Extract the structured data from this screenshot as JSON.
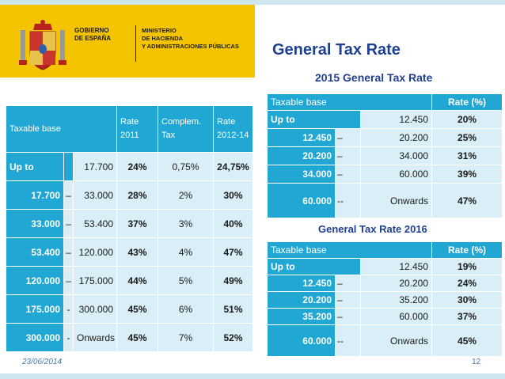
{
  "header": {
    "gov_line1": "GOBIERNO",
    "gov_line2": "DE ESPAÑA",
    "ministry_line1": "MINISTERIO",
    "ministry_line2": "DE HACIENDA",
    "ministry_line3": "Y ADMINISTRACIONES PÚBLICAS",
    "banner_color": "#f4c400"
  },
  "title": "General Tax Rate",
  "left_table": {
    "headers": {
      "base": "Taxable base",
      "rate2011_a": "Rate",
      "rate2011_b": "2011",
      "complem_a": "Complem.",
      "complem_b": "Tax",
      "rate1214_a": "Rate",
      "rate1214_b": "2012-14"
    },
    "rows": [
      {
        "lower": "Up to",
        "sep": "",
        "upper": "17.700",
        "rate2011": "24%",
        "complem": "0,75%",
        "rate1214": "24,75%"
      },
      {
        "lower": "17.700",
        "sep": "–",
        "upper": "33.000",
        "rate2011": "28%",
        "complem": "2%",
        "rate1214": "30%"
      },
      {
        "lower": "33.000",
        "sep": "–",
        "upper": "53.400",
        "rate2011": "37%",
        "complem": "3%",
        "rate1214": "40%"
      },
      {
        "lower": "53.400",
        "sep": "–",
        "upper": "120.000",
        "rate2011": "43%",
        "complem": "4%",
        "rate1214": "47%"
      },
      {
        "lower": "120.000",
        "sep": "–",
        "upper": "175.000",
        "rate2011": "44%",
        "complem": "5%",
        "rate1214": "49%"
      },
      {
        "lower": "175.000",
        "sep": "-",
        "upper": "300.000",
        "rate2011": "45%",
        "complem": "6%",
        "rate1214": "51%"
      },
      {
        "lower": "300.000",
        "sep": "-",
        "upper": "Onwards",
        "rate2011": "45%",
        "complem": "7%",
        "rate1214": "52%"
      }
    ]
  },
  "table_2015": {
    "caption": "2015 General Tax Rate",
    "headers": {
      "base": "Taxable base",
      "rate": "Rate (%)"
    },
    "rows": [
      {
        "lower": "Up to",
        "sep": "",
        "upper": "12.450",
        "rate": "20%"
      },
      {
        "lower": "12.450",
        "sep": "–",
        "upper": "20.200",
        "rate": "25%"
      },
      {
        "lower": "20.200",
        "sep": "–",
        "upper": "34.000",
        "rate": "31%"
      },
      {
        "lower": "34.000",
        "sep": "–",
        "upper": "60.000",
        "rate": "39%"
      },
      {
        "lower": "60.000",
        "sep": "--",
        "upper": "Onwards",
        "rate": "47%"
      }
    ]
  },
  "table_2016": {
    "caption": "General Tax Rate 2016",
    "headers": {
      "base": "Taxable  base",
      "rate": "Rate (%)"
    },
    "rows": [
      {
        "lower": "Up to",
        "sep": "",
        "upper": "12.450",
        "rate": "19%"
      },
      {
        "lower": "12.450",
        "sep": "–",
        "upper": "20.200",
        "rate": "24%"
      },
      {
        "lower": "20.200",
        "sep": "–",
        "upper": "35.200",
        "rate": "30%"
      },
      {
        "lower": "35.200",
        "sep": "–",
        "upper": "60.000",
        "rate": "37%"
      },
      {
        "lower": "60.000",
        "sep": "--",
        "upper": "Onwards",
        "rate": "45%"
      }
    ]
  },
  "footer": {
    "date": "23/06/2014",
    "page": "12"
  },
  "colors": {
    "accent": "#20a7d4",
    "cell": "#d9eef7",
    "title": "#1f3f91"
  }
}
